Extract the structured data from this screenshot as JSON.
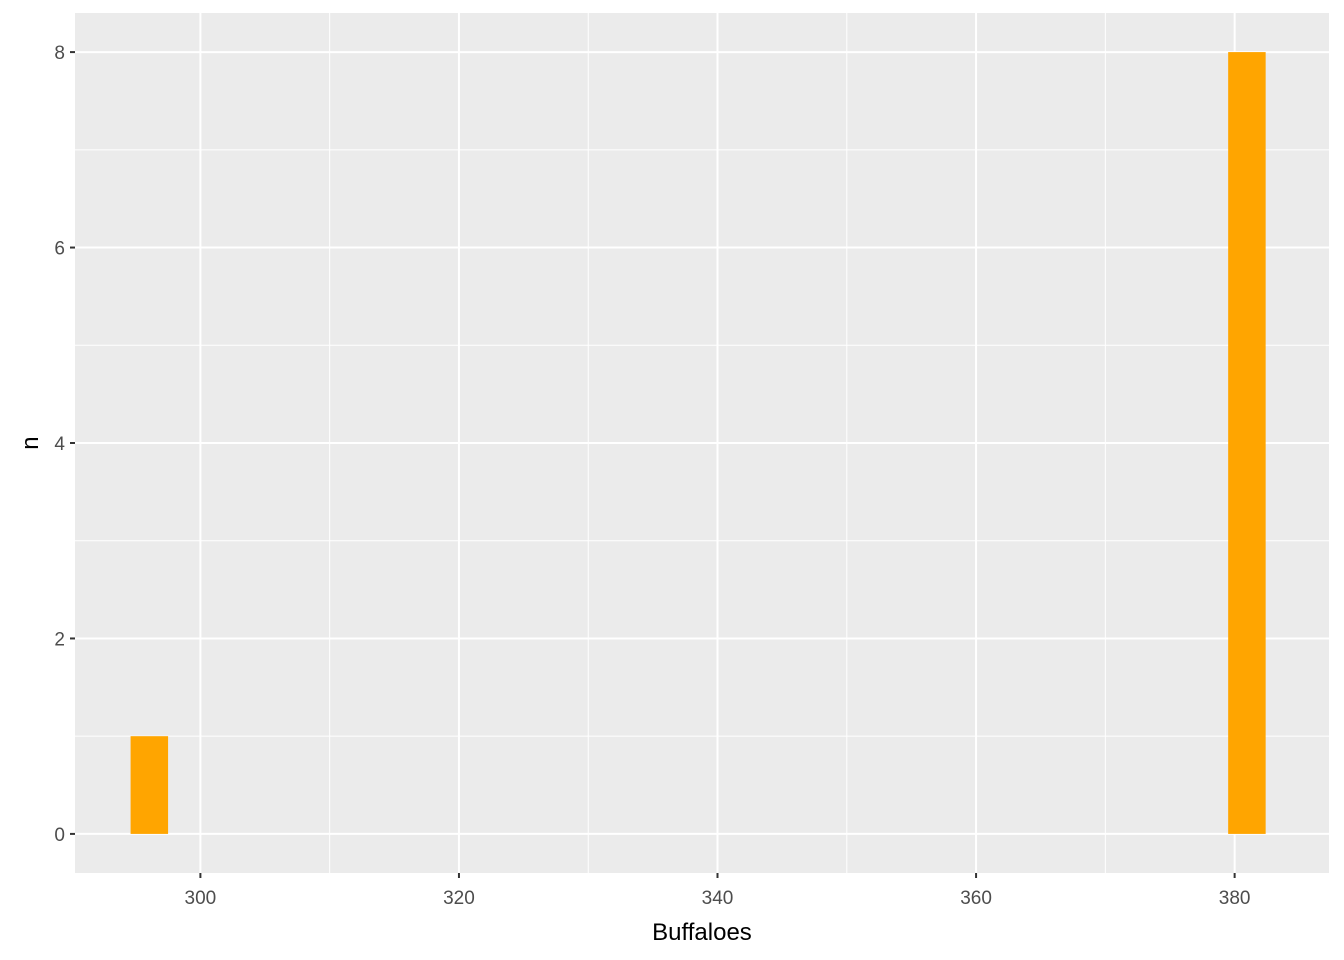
{
  "chart_data": {
    "type": "bar",
    "title": "",
    "xlabel": "Buffaloes",
    "ylabel": "n",
    "xlim": [
      290.3,
      387.3
    ],
    "ylim": [
      -0.4,
      8.4
    ],
    "x_ticks": [
      300,
      320,
      340,
      360,
      380
    ],
    "x_tick_labels": [
      "300",
      "320",
      "340",
      "360",
      "380"
    ],
    "y_ticks": [
      0,
      2,
      4,
      6,
      8
    ],
    "y_tick_labels": [
      "0",
      "2",
      "4",
      "6",
      "8"
    ],
    "grid": true,
    "bins": [
      {
        "x_start": 294.6,
        "x_end": 297.5,
        "count": 1
      },
      {
        "x_start": 379.5,
        "x_end": 382.4,
        "count": 8
      }
    ],
    "colors": {
      "bar": "#FFA500",
      "panel": "#EBEBEB",
      "grid": "#FFFFFF",
      "tick_text": "#4D4D4D"
    }
  }
}
